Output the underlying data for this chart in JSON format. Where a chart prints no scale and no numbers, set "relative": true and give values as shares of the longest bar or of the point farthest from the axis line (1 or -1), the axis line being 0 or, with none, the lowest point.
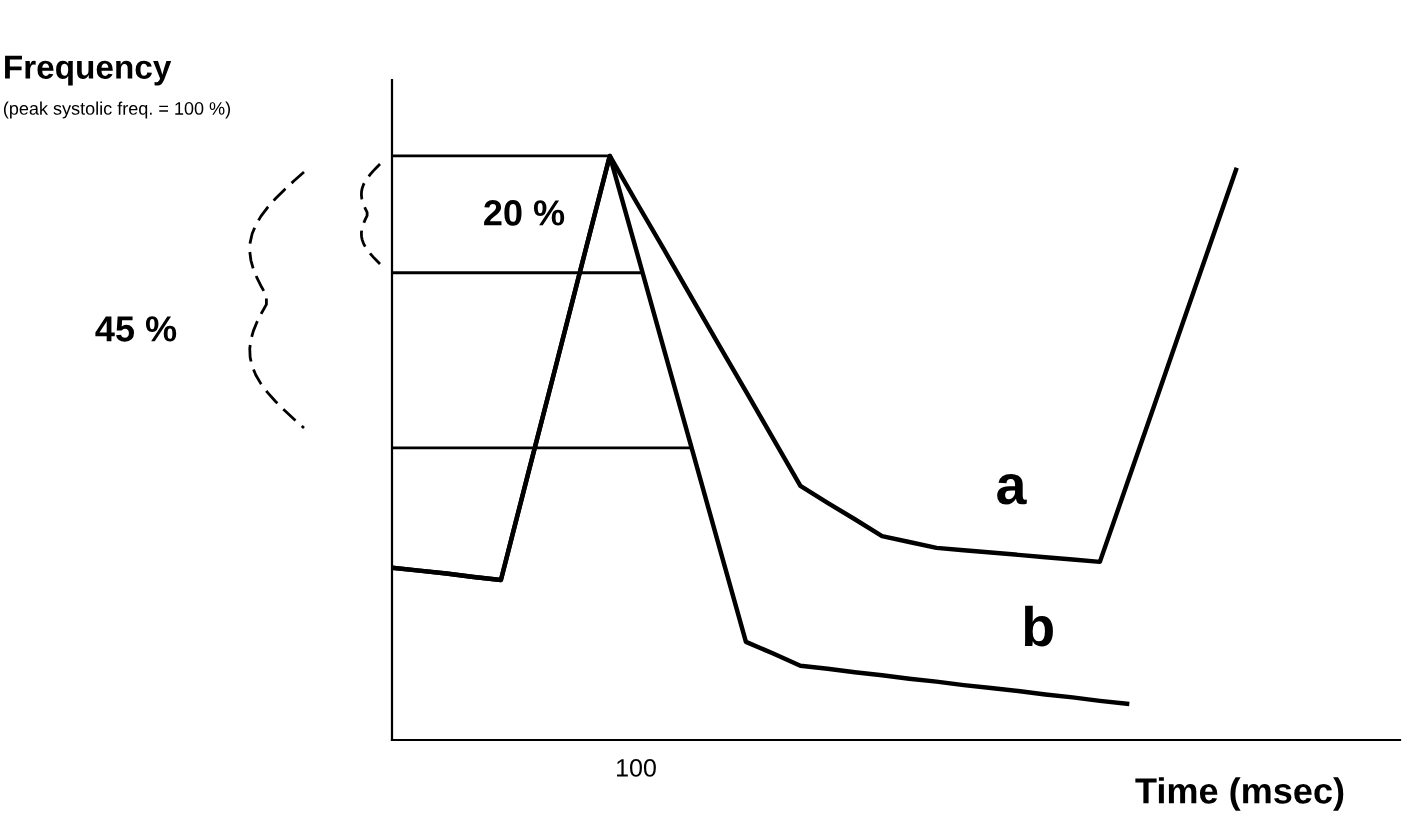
{
  "chart_data": {
    "type": "line",
    "relative": true,
    "title": "Frequency",
    "subtitle": "(peak systolic freq. = 100 %)",
    "xlabel": "Time (msec)",
    "tick_labels": false,
    "annotations": [
      "20 %",
      "45 %",
      "100"
    ],
    "categories": [
      null,
      null,
      null,
      null,
      null,
      null,
      null,
      null,
      null,
      null,
      null,
      null,
      null,
      null,
      null,
      null,
      null,
      null,
      null,
      null,
      null,
      null,
      null,
      null,
      null,
      null,
      null,
      null,
      null,
      null,
      null,
      null
    ],
    "ref_lines": [
      {
        "axis": "y",
        "value": 1,
        "color": "#000000"
      },
      {
        "axis": "y",
        "value": 0.8,
        "color": "#000000"
      },
      {
        "axis": "y",
        "value": 0.5,
        "color": "#000000"
      }
    ],
    "series": [
      {
        "name": "a",
        "color": "#000000",
        "values": [
          0.295,
          0.29,
          0.285,
          0.279,
          0.274,
          0.456,
          0.637,
          0.819,
          1,
          0.919,
          0.839,
          0.758,
          0.677,
          0.597,
          0.516,
          0.435,
          0.406,
          0.378,
          0.349,
          0.339,
          0.329,
          0.325,
          0.321,
          0.317,
          0.313,
          0.309,
          0.305,
          0.439,
          0.573,
          0.708,
          0.842,
          0.976
        ]
      },
      {
        "name": "b",
        "color": "#000000",
        "values": [
          0.295,
          0.29,
          0.285,
          0.279,
          0.274,
          0.456,
          0.637,
          0.819,
          1,
          0.834,
          0.667,
          0.501,
          0.334,
          0.168,
          0.148,
          0.127,
          0.122,
          0.116,
          0.111,
          0.105,
          0.1,
          0.094,
          0.089,
          0.084,
          0.078,
          0.073,
          0.067,
          0.062,
          null,
          null,
          null,
          null
        ]
      }
    ]
  }
}
